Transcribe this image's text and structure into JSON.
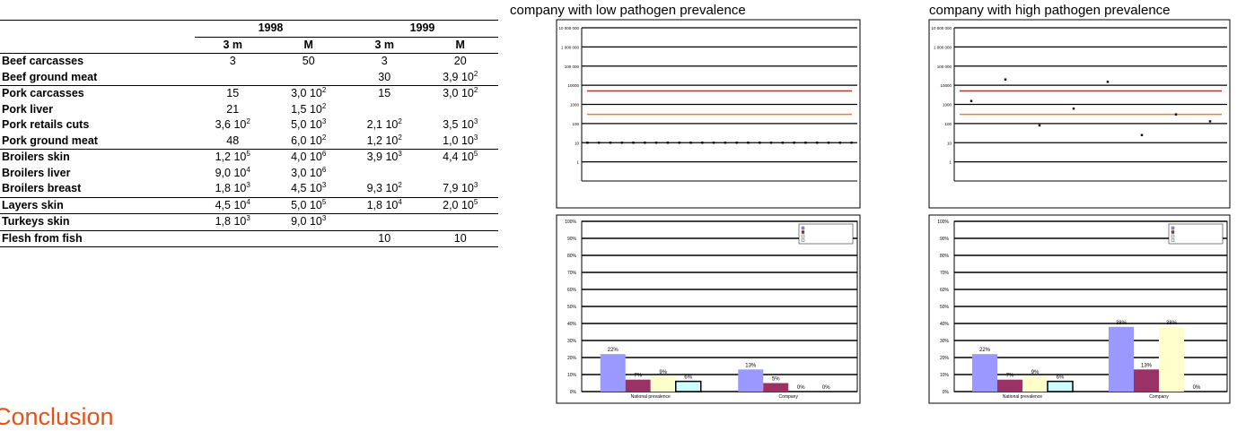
{
  "table": {
    "years": [
      "1998",
      "1999"
    ],
    "columns": [
      "3 m",
      "M",
      "3 m",
      "M"
    ],
    "groups": [
      [
        {
          "name": "Beef carcasses",
          "cells": [
            "3",
            "50",
            "3",
            "20"
          ]
        },
        {
          "name": "Beef ground meat",
          "cells": [
            null,
            null,
            "30",
            {
              "text": "3,9 10",
              "sup": "2"
            }
          ]
        }
      ],
      [
        {
          "name": "Pork carcasses",
          "cells": [
            "15",
            {
              "text": "3,0 10",
              "sup": "2"
            },
            "15",
            {
              "text": "3,0 10",
              "sup": "2"
            }
          ]
        },
        {
          "name": "Pork liver",
          "cells": [
            "21",
            {
              "text": "1,5 10",
              "sup": "2"
            },
            null,
            null
          ]
        },
        {
          "name": "Pork retails cuts",
          "cells": [
            {
              "text": "3,6 10",
              "sup": "2"
            },
            {
              "text": "5,0 10",
              "sup": "3"
            },
            {
              "text": "2,1 10",
              "sup": "2"
            },
            {
              "text": "3,5 10",
              "sup": "3"
            }
          ]
        },
        {
          "name": "Pork ground meat",
          "cells": [
            "48",
            {
              "text": "6,0 10",
              "sup": "2"
            },
            {
              "text": "1,2 10",
              "sup": "2"
            },
            {
              "text": "1,0 10",
              "sup": "3"
            }
          ]
        }
      ],
      [
        {
          "name": "Broilers skin",
          "cells": [
            {
              "text": "1,2 10",
              "sup": "5"
            },
            {
              "text": "4,0 10",
              "sup": "6"
            },
            {
              "text": "3,9 10",
              "sup": "3"
            },
            {
              "text": "4,4 10",
              "sup": "5"
            }
          ]
        },
        {
          "name": "Broilers liver",
          "cells": [
            {
              "text": "9,0 10",
              "sup": "4"
            },
            {
              "text": "3,0 10",
              "sup": "6"
            },
            null,
            null
          ]
        },
        {
          "name": "Broilers breast",
          "cells": [
            {
              "text": "1,8 10",
              "sup": "3"
            },
            {
              "text": "4,5 10",
              "sup": "3"
            },
            {
              "text": "9,3 10",
              "sup": "2"
            },
            {
              "text": "7,9 10",
              "sup": "3"
            }
          ]
        }
      ],
      [
        {
          "name": "Layers skin",
          "cells": [
            {
              "text": "4,5 10",
              "sup": "4"
            },
            {
              "text": "5,0 10",
              "sup": "5"
            },
            {
              "text": "1,8 10",
              "sup": "4"
            },
            {
              "text": "2,0 10",
              "sup": "5"
            }
          ]
        }
      ],
      [
        {
          "name": "Turkeys skin",
          "cells": [
            {
              "text": "1,8 10",
              "sup": "3"
            },
            {
              "text": "9,0 10",
              "sup": "3"
            },
            null,
            null
          ]
        }
      ],
      [
        {
          "name": "Flesh from fish",
          "cells": [
            null,
            null,
            "10",
            "10"
          ]
        }
      ]
    ]
  },
  "charts": [
    {
      "type": "scatter",
      "caption": "company with low pathogen prevalence",
      "log_y": true,
      "ylim": [
        0.1,
        10000000
      ],
      "yticks": [
        1,
        10,
        100,
        1000,
        10000,
        {
          "value": 100000,
          "label": "100 000"
        },
        {
          "value": 1000000,
          "label": "1 000 000"
        },
        {
          "value": 10000000,
          "label": "10 000 000"
        }
      ],
      "reference_lines": [
        {
          "value": 5000,
          "color": "#e02020"
        },
        {
          "value": 300,
          "color": "#f08020"
        }
      ],
      "color": "#000000",
      "values": [
        10,
        10,
        10,
        10,
        10,
        10,
        10,
        10,
        10,
        10,
        10,
        10,
        10,
        10,
        10,
        10,
        10,
        10,
        10,
        10,
        10,
        10,
        10,
        10
      ]
    },
    {
      "type": "scatter",
      "caption": "company with high pathogen prevalence",
      "log_y": true,
      "ylim": [
        0.1,
        10000000
      ],
      "yticks": [
        1,
        10,
        100,
        1000,
        10000,
        {
          "value": 100000,
          "label": "100 000"
        },
        {
          "value": 1000000,
          "label": "1 000 000"
        },
        {
          "value": 10000000,
          "label": "10 000 000"
        }
      ],
      "reference_lines": [
        {
          "value": 5000,
          "color": "#e02020"
        },
        {
          "value": 300,
          "color": "#f08020"
        }
      ],
      "color": "#000000",
      "values": [
        1500,
        20000,
        80,
        600,
        15000,
        25,
        300,
        130
      ]
    },
    {
      "type": "bar",
      "categories": [
        "National prevalence",
        "Company"
      ],
      "ylim": [
        0,
        100
      ],
      "yticks": [
        {
          "value": 0,
          "label": "0%"
        },
        {
          "value": 10,
          "label": "10%"
        },
        {
          "value": 20,
          "label": "20%"
        },
        {
          "value": 30,
          "label": "30%"
        },
        {
          "value": 40,
          "label": "40%"
        },
        {
          "value": 50,
          "label": "50%"
        },
        {
          "value": 60,
          "label": "60%"
        },
        {
          "value": 70,
          "label": "70%"
        },
        {
          "value": 80,
          "label": "80%"
        },
        {
          "value": 90,
          "label": "90%"
        },
        {
          "value": 100,
          "label": "100%"
        }
      ],
      "series": [
        {
          "color": "#9999ff",
          "values": [
            22,
            13
          ],
          "value_labels": [
            "22%",
            "13%"
          ]
        },
        {
          "color": "#993366",
          "values": [
            7,
            5
          ],
          "value_labels": [
            "7%",
            "5%"
          ]
        },
        {
          "color": "#ffffcc",
          "values": [
            9,
            0
          ],
          "value_labels": [
            "9%",
            "0%"
          ]
        },
        {
          "color": "#ccffff",
          "values": [
            6,
            0
          ],
          "value_labels": [
            "6%",
            "0%"
          ]
        }
      ]
    },
    {
      "type": "bar",
      "categories": [
        "National prevalence",
        "Company"
      ],
      "ylim": [
        0,
        100
      ],
      "yticks": [
        {
          "value": 0,
          "label": "0%"
        },
        {
          "value": 10,
          "label": "10%"
        },
        {
          "value": 20,
          "label": "20%"
        },
        {
          "value": 30,
          "label": "30%"
        },
        {
          "value": 40,
          "label": "40%"
        },
        {
          "value": 50,
          "label": "50%"
        },
        {
          "value": 60,
          "label": "60%"
        },
        {
          "value": 70,
          "label": "70%"
        },
        {
          "value": 80,
          "label": "80%"
        },
        {
          "value": 90,
          "label": "90%"
        },
        {
          "value": 100,
          "label": "100%"
        }
      ],
      "series": [
        {
          "color": "#9999ff",
          "values": [
            22,
            38
          ],
          "value_labels": [
            "22%",
            "38%"
          ]
        },
        {
          "color": "#993366",
          "values": [
            7,
            13
          ],
          "value_labels": [
            "7%",
            "13%"
          ]
        },
        {
          "color": "#ffffcc",
          "values": [
            9,
            38
          ],
          "value_labels": [
            "9%",
            "38%"
          ]
        },
        {
          "color": "#ccffff",
          "values": [
            6,
            0
          ],
          "value_labels": [
            "6%",
            "0%"
          ]
        }
      ]
    }
  ],
  "heading": "Conclusion"
}
